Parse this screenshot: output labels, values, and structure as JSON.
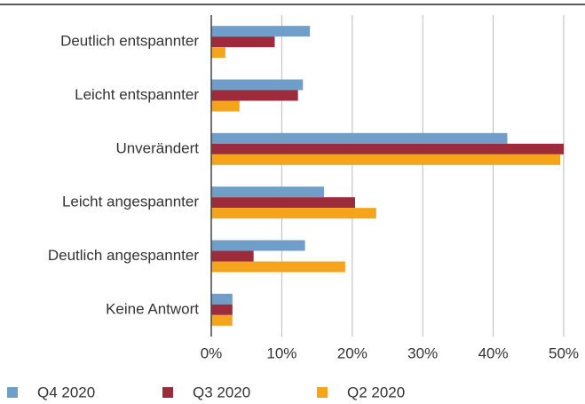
{
  "chart_data": {
    "type": "hbar",
    "categories": [
      "Deutlich entspannter",
      "Leicht entspannter",
      "Unverändert",
      "Leicht angespannter",
      "Deutlich angespannter",
      "Keine Antwort"
    ],
    "series": [
      {
        "name": "Q4 2020",
        "color": "#6f9fc8",
        "values": [
          14,
          13,
          42,
          16,
          13.3,
          3
        ]
      },
      {
        "name": "Q3 2020",
        "color": "#9c2b3c",
        "values": [
          9,
          12.3,
          50,
          20.4,
          6,
          3
        ]
      },
      {
        "name": "Q2 2020",
        "color": "#f6a41c",
        "values": [
          2,
          4,
          49.5,
          23.4,
          19,
          3
        ]
      }
    ],
    "xlim": [
      0,
      50
    ],
    "xticks": [
      {
        "value": 0,
        "label": "0%"
      },
      {
        "value": 10,
        "label": "10%"
      },
      {
        "value": 20,
        "label": "20%"
      },
      {
        "value": 30,
        "label": "30%"
      },
      {
        "value": 40,
        "label": "40%"
      },
      {
        "value": 50,
        "label": "50%"
      }
    ],
    "grid": true,
    "legend": "bottom"
  }
}
